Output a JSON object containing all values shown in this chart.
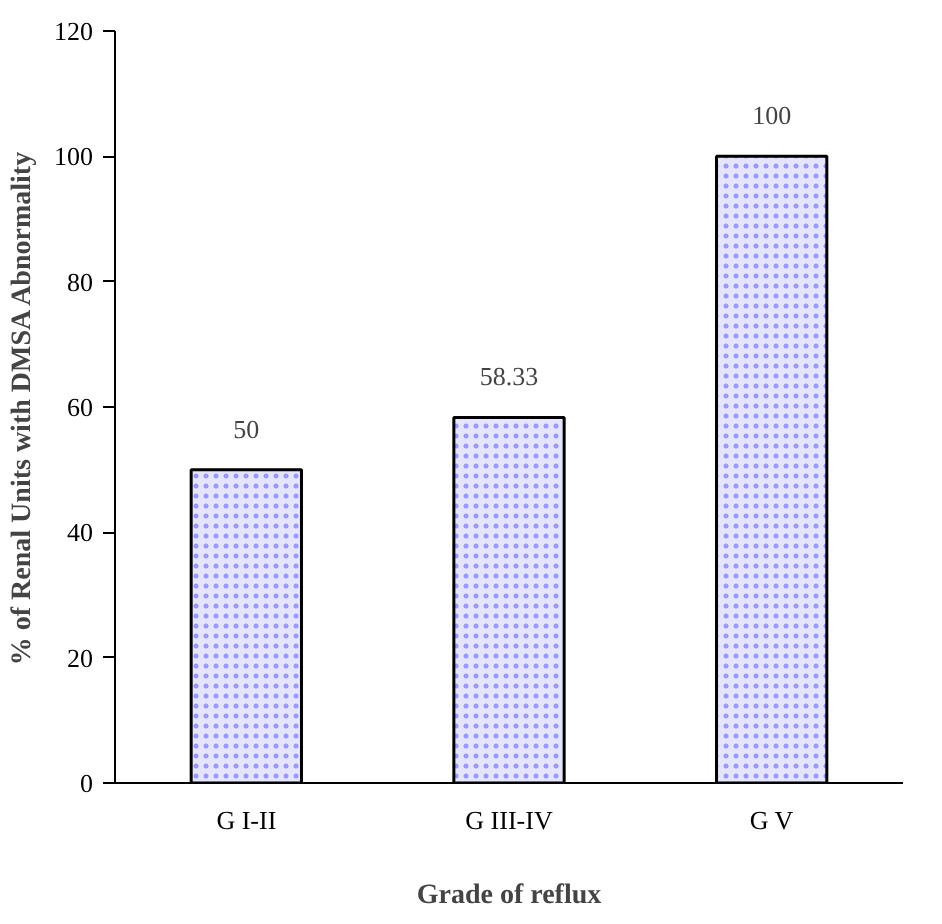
{
  "chart_data": {
    "type": "bar",
    "xlabel": "Grade of reflux",
    "ylabel": "% of Renal Units with DMSA Abnormality",
    "categories": [
      "G I-II",
      "G III-IV",
      "G V"
    ],
    "values": [
      50,
      58.33,
      100
    ],
    "color": "#9999ff",
    "ylim": [
      0,
      120
    ],
    "yticks": [
      0,
      20,
      40,
      60,
      80,
      100,
      120
    ],
    "grid": false,
    "data_labels": true
  }
}
